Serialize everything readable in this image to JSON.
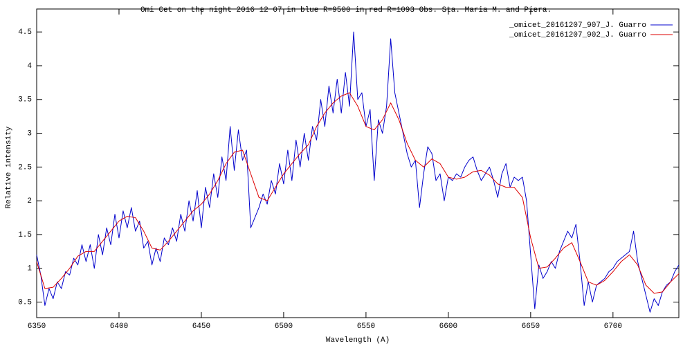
{
  "chart_data": {
    "type": "line",
    "title": "Omi Cet  on the night 2016 12 07  in  blue R=9500 in red R=1093 Obs.  Sta. Maria M. and Piera.",
    "xlabel": "Wavelength (A)",
    "ylabel": "Relative intensity",
    "xlim": [
      6350,
      6740
    ],
    "ylim": [
      0.27,
      4.84
    ],
    "xticks": [
      6350,
      6400,
      6450,
      6500,
      6550,
      6600,
      6650,
      6700
    ],
    "yticks": [
      0.5,
      1,
      1.5,
      2,
      2.5,
      3,
      3.5,
      4,
      4.5
    ],
    "grid": false,
    "legend": "top-right",
    "series": [
      {
        "name": "_omicet_20161207_907_J. Guarro",
        "color": "#0000cc",
        "x": [
          6350,
          6352.5,
          6355,
          6357.5,
          6360,
          6362.5,
          6365,
          6367.5,
          6370,
          6372.5,
          6375,
          6377.5,
          6380,
          6382.5,
          6385,
          6387.5,
          6390,
          6392.5,
          6395,
          6397.5,
          6400,
          6402.5,
          6405,
          6407.5,
          6410,
          6412.5,
          6415,
          6417.5,
          6420,
          6422.5,
          6425,
          6427.5,
          6430,
          6432.5,
          6435,
          6437.5,
          6440,
          6442.5,
          6445,
          6447.5,
          6450,
          6452.5,
          6455,
          6457.5,
          6460,
          6462.5,
          6465,
          6467.5,
          6470,
          6472.5,
          6475,
          6477.5,
          6480,
          6482.5,
          6485,
          6487.5,
          6490,
          6492.5,
          6495,
          6497.5,
          6500,
          6502.5,
          6505,
          6507.5,
          6510,
          6512.5,
          6515,
          6517.5,
          6520,
          6522.5,
          6525,
          6527.5,
          6530,
          6532.5,
          6535,
          6537.5,
          6540,
          6542.5,
          6545,
          6547.5,
          6550,
          6552.5,
          6555,
          6557.5,
          6560,
          6562.5,
          6565,
          6567.5,
          6570,
          6572.5,
          6575,
          6577.5,
          6580,
          6582.5,
          6585,
          6587.5,
          6590,
          6592.5,
          6595,
          6597.5,
          6600,
          6602.5,
          6605,
          6607.5,
          6610,
          6612.5,
          6615,
          6617.5,
          6620,
          6622.5,
          6625,
          6627.5,
          6630,
          6632.5,
          6635,
          6637.5,
          6640,
          6642.5,
          6645,
          6647.5,
          6650,
          6652.5,
          6655,
          6657.5,
          6660,
          6662.5,
          6665,
          6667.5,
          6670,
          6672.5,
          6675,
          6677.5,
          6680,
          6682.5,
          6685,
          6687.5,
          6690,
          6692.5,
          6695,
          6697.5,
          6700,
          6702.5,
          6705,
          6707.5,
          6710,
          6712.5,
          6715,
          6717.5,
          6720,
          6722.5,
          6725,
          6727.5,
          6730,
          6732.5,
          6735,
          6737.5,
          6740
        ],
        "values": [
          1.2,
          0.9,
          0.45,
          0.7,
          0.55,
          0.8,
          0.7,
          0.95,
          0.9,
          1.15,
          1.05,
          1.35,
          1.1,
          1.35,
          1.0,
          1.5,
          1.2,
          1.6,
          1.35,
          1.8,
          1.45,
          1.85,
          1.6,
          1.9,
          1.55,
          1.7,
          1.3,
          1.4,
          1.05,
          1.3,
          1.1,
          1.45,
          1.35,
          1.6,
          1.4,
          1.8,
          1.55,
          2.0,
          1.7,
          2.15,
          1.6,
          2.2,
          1.9,
          2.4,
          2.05,
          2.65,
          2.3,
          3.1,
          2.45,
          3.05,
          2.6,
          2.75,
          1.6,
          1.75,
          1.9,
          2.1,
          1.95,
          2.3,
          2.1,
          2.55,
          2.25,
          2.75,
          2.3,
          2.9,
          2.5,
          3.0,
          2.6,
          3.1,
          2.9,
          3.5,
          3.1,
          3.7,
          3.3,
          3.8,
          3.3,
          3.9,
          3.4,
          4.5,
          3.5,
          3.6,
          3.1,
          3.35,
          2.3,
          3.2,
          3.0,
          3.4,
          4.4,
          3.6,
          3.3,
          3.0,
          2.7,
          2.5,
          2.6,
          1.9,
          2.4,
          2.8,
          2.7,
          2.3,
          2.4,
          2.0,
          2.35,
          2.3,
          2.4,
          2.35,
          2.5,
          2.6,
          2.65,
          2.45,
          2.3,
          2.4,
          2.5,
          2.3,
          2.05,
          2.4,
          2.55,
          2.2,
          2.35,
          2.3,
          2.35,
          2.0,
          1.2,
          0.4,
          1.05,
          0.85,
          0.95,
          1.1,
          1.0,
          1.25,
          1.4,
          1.55,
          1.45,
          1.65,
          1.1,
          0.45,
          0.8,
          0.5,
          0.75,
          0.8,
          0.85,
          0.95,
          1.0,
          1.1,
          1.15,
          1.2,
          1.25,
          1.55,
          1.1,
          0.85,
          0.6,
          0.35,
          0.55,
          0.45,
          0.65,
          0.75,
          0.8,
          0.95,
          1.05
        ]
      },
      {
        "name": "_omicet_20161207_902_J. Guarro",
        "color": "#dd0000",
        "x": [
          6350,
          6355,
          6360,
          6365,
          6370,
          6375,
          6380,
          6385,
          6390,
          6395,
          6400,
          6405,
          6410,
          6415,
          6420,
          6425,
          6430,
          6435,
          6440,
          6445,
          6450,
          6455,
          6460,
          6465,
          6470,
          6475,
          6480,
          6485,
          6490,
          6495,
          6500,
          6505,
          6510,
          6515,
          6520,
          6525,
          6530,
          6535,
          6540,
          6545,
          6550,
          6555,
          6560,
          6565,
          6570,
          6575,
          6580,
          6585,
          6590,
          6595,
          6600,
          6605,
          6610,
          6615,
          6620,
          6625,
          6630,
          6635,
          6640,
          6645,
          6650,
          6655,
          6660,
          6665,
          6670,
          6675,
          6680,
          6685,
          6690,
          6695,
          6700,
          6705,
          6710,
          6715,
          6720,
          6725,
          6730,
          6735,
          6740
        ],
        "values": [
          1.1,
          0.7,
          0.72,
          0.85,
          1.0,
          1.18,
          1.25,
          1.25,
          1.4,
          1.55,
          1.7,
          1.77,
          1.75,
          1.55,
          1.3,
          1.27,
          1.4,
          1.55,
          1.7,
          1.85,
          1.95,
          2.1,
          2.3,
          2.55,
          2.72,
          2.75,
          2.4,
          2.05,
          2.0,
          2.2,
          2.4,
          2.55,
          2.7,
          2.83,
          3.1,
          3.3,
          3.45,
          3.55,
          3.6,
          3.4,
          3.1,
          3.05,
          3.2,
          3.45,
          3.2,
          2.85,
          2.6,
          2.5,
          2.62,
          2.55,
          2.35,
          2.32,
          2.35,
          2.43,
          2.45,
          2.38,
          2.25,
          2.2,
          2.2,
          2.05,
          1.45,
          1.0,
          1.02,
          1.15,
          1.3,
          1.38,
          1.1,
          0.8,
          0.75,
          0.82,
          0.95,
          1.1,
          1.2,
          1.05,
          0.75,
          0.63,
          0.65,
          0.8,
          0.92
        ]
      }
    ]
  }
}
